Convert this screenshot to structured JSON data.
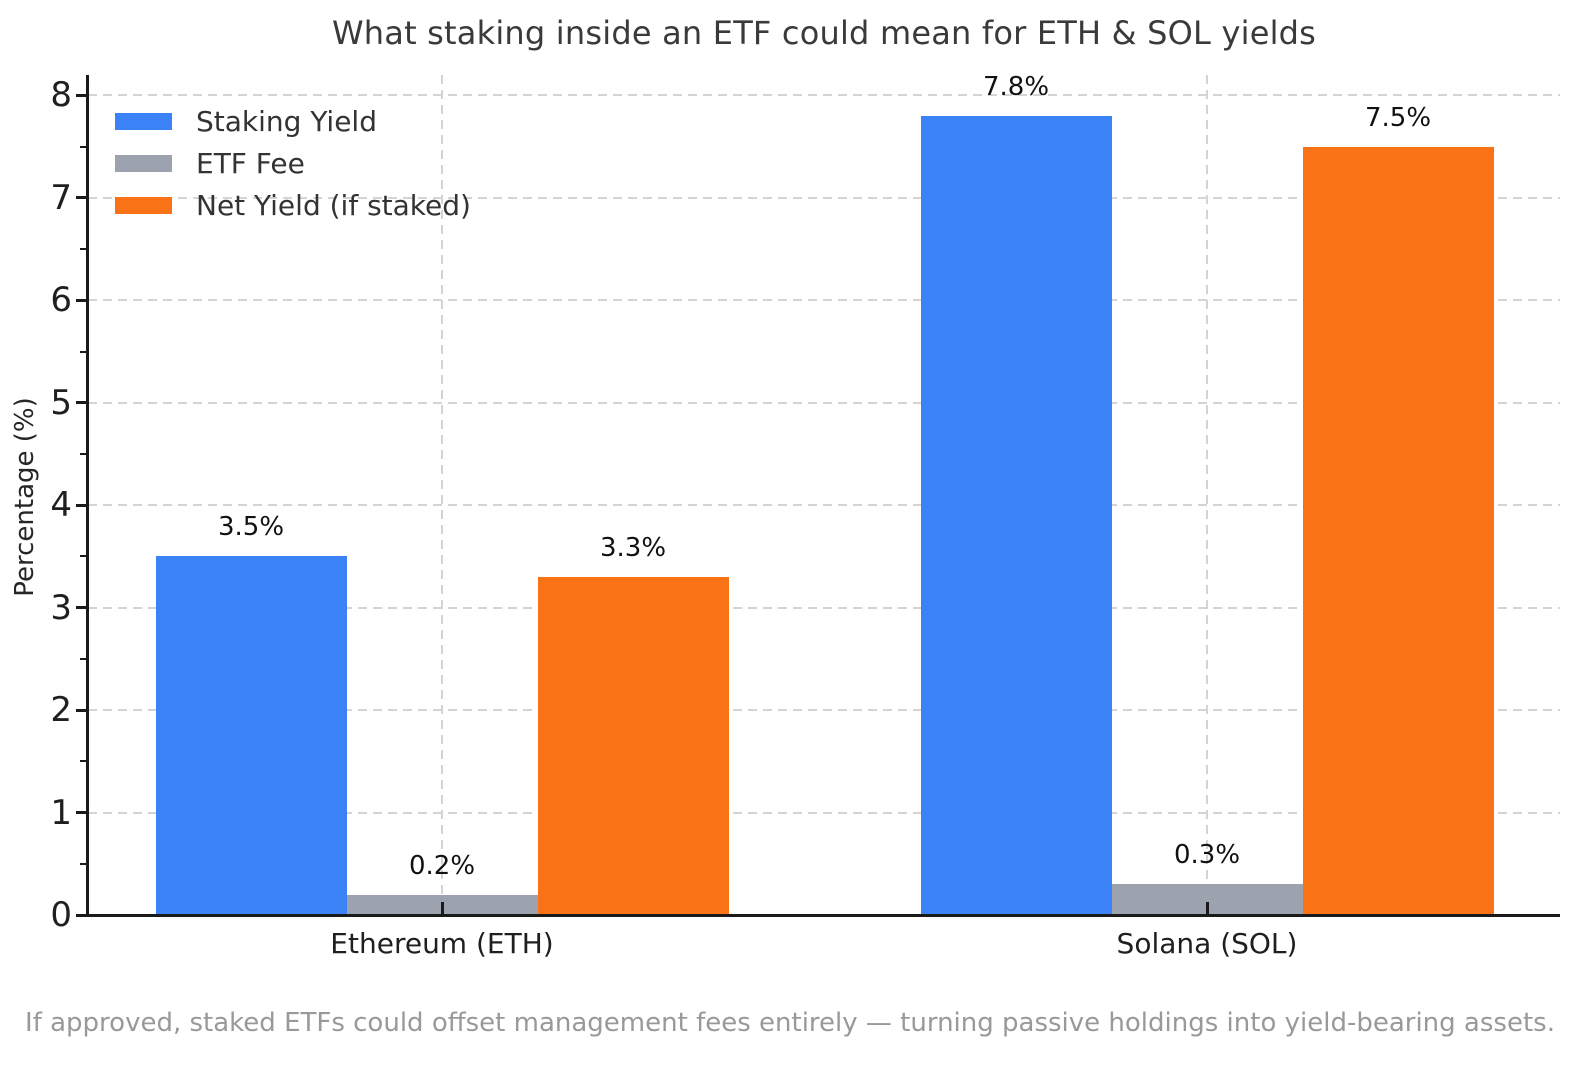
{
  "chart_data": {
    "type": "bar",
    "title": "What staking inside an ETF could mean for ETH & SOL yields",
    "ylabel": "Percentage (%)",
    "xlabel": "",
    "categories": [
      "Ethereum (ETH)",
      "Solana (SOL)"
    ],
    "series": [
      {
        "name": "Staking Yield",
        "color": "#3b82f6",
        "values": [
          3.5,
          7.8
        ],
        "bar_labels": [
          "3.5%",
          "7.8%"
        ]
      },
      {
        "name": "ETF Fee",
        "color": "#9ca3af",
        "values": [
          0.2,
          0.3
        ],
        "bar_labels": [
          "0.2%",
          "0.3%"
        ]
      },
      {
        "name": "Net Yield (if staked)",
        "color": "#f97316",
        "values": [
          3.3,
          7.5
        ],
        "bar_labels": [
          "3.3%",
          "7.5%"
        ]
      }
    ],
    "ylim": [
      0,
      8.2
    ],
    "yticks": [
      0,
      1,
      2,
      3,
      4,
      5,
      6,
      7,
      8
    ],
    "minor_ytick_step": 0.5,
    "grid": "dashed",
    "legend_position": "upper left",
    "caption": "If approved, staked ETFs could offset management fees entirely — turning passive holdings into yield-bearing assets."
  }
}
